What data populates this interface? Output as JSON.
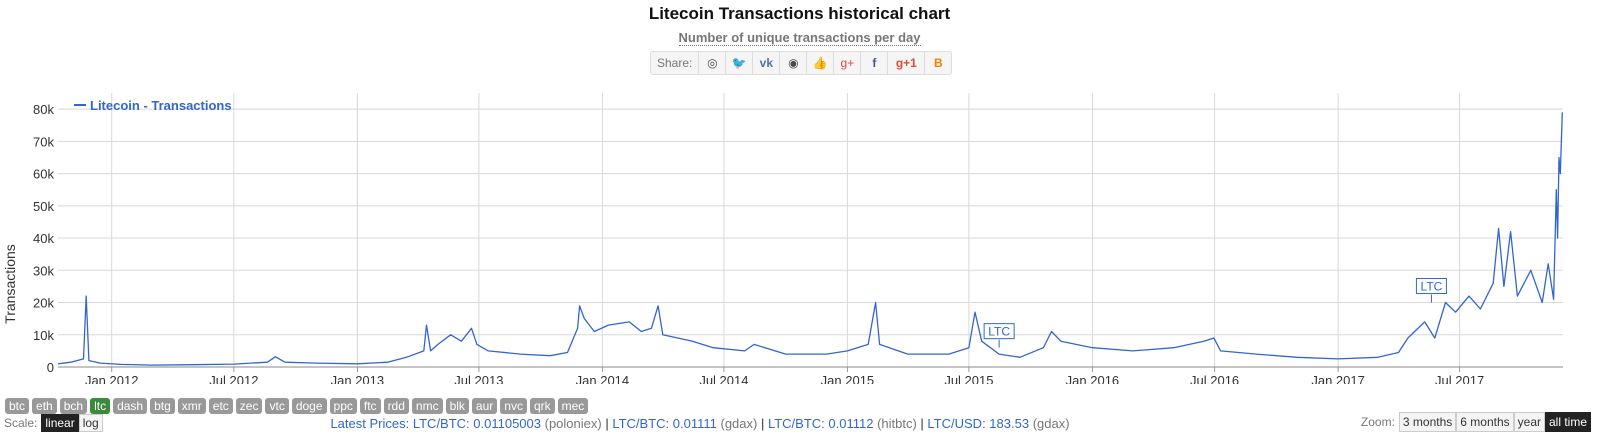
{
  "title": "Litecoin Transactions historical chart",
  "subtitle": "Number of unique transactions per day",
  "share": {
    "label": "Share:",
    "buttons": [
      {
        "icon": "reddit-icon",
        "glyph": "◎"
      },
      {
        "icon": "twitter-icon",
        "glyph": "🐦"
      },
      {
        "icon": "vk-icon",
        "glyph": "vk"
      },
      {
        "icon": "weibo-icon",
        "glyph": "◉"
      },
      {
        "icon": "like-icon",
        "glyph": "👍"
      },
      {
        "icon": "google-plus-icon",
        "glyph": "g+"
      },
      {
        "icon": "facebook-icon",
        "glyph": "f"
      },
      {
        "icon": "google-plus-one-icon",
        "glyph": "g+1"
      },
      {
        "icon": "blogger-icon",
        "glyph": "B"
      }
    ]
  },
  "chart_data": {
    "type": "line",
    "title": "Litecoin Transactions historical chart",
    "subtitle": "Number of unique transactions per day",
    "ylabel": "Transactions",
    "xlabel": "",
    "ylim": [
      0,
      85000
    ],
    "xlim": [
      "2011-10-13",
      "2017-12-02"
    ],
    "grid": true,
    "legend_placement": "top-left",
    "y_ticks": [
      0,
      10000,
      20000,
      30000,
      40000,
      50000,
      60000,
      70000,
      80000
    ],
    "y_tick_labels": [
      "0",
      "10k",
      "20k",
      "30k",
      "40k",
      "50k",
      "60k",
      "70k",
      "80k"
    ],
    "x_ticks": [
      "2012-01-01",
      "2012-07-01",
      "2013-01-01",
      "2013-07-01",
      "2014-01-01",
      "2014-07-01",
      "2015-01-01",
      "2015-07-01",
      "2016-01-01",
      "2016-07-01",
      "2017-01-01",
      "2017-07-01"
    ],
    "x_tick_labels": [
      "Jan 2012",
      "Jul 2012",
      "Jan 2013",
      "Jul 2013",
      "Jan 2014",
      "Jul 2014",
      "Jan 2015",
      "Jul 2015",
      "Jan 2016",
      "Jul 2016",
      "Jan 2017",
      "Jul 2017"
    ],
    "series": [
      {
        "name": "Litecoin - Transactions",
        "color": "#3366cc",
        "points": [
          [
            "2011-10-13",
            1000
          ],
          [
            "2011-11-01",
            1500
          ],
          [
            "2011-11-20",
            2500
          ],
          [
            "2011-11-24",
            22000
          ],
          [
            "2011-11-28",
            2000
          ],
          [
            "2011-12-15",
            1200
          ],
          [
            "2012-01-15",
            800
          ],
          [
            "2012-03-01",
            600
          ],
          [
            "2012-05-01",
            700
          ],
          [
            "2012-07-01",
            900
          ],
          [
            "2012-08-20",
            1500
          ],
          [
            "2012-09-01",
            3200
          ],
          [
            "2012-09-15",
            1500
          ],
          [
            "2012-11-01",
            1200
          ],
          [
            "2013-01-01",
            1000
          ],
          [
            "2013-02-15",
            1500
          ],
          [
            "2013-03-15",
            3000
          ],
          [
            "2013-04-10",
            5000
          ],
          [
            "2013-04-14",
            13000
          ],
          [
            "2013-04-20",
            5000
          ],
          [
            "2013-05-01",
            7000
          ],
          [
            "2013-05-20",
            10000
          ],
          [
            "2013-06-05",
            8000
          ],
          [
            "2013-06-20",
            12000
          ],
          [
            "2013-06-28",
            7000
          ],
          [
            "2013-07-15",
            5000
          ],
          [
            "2013-09-01",
            4000
          ],
          [
            "2013-10-15",
            3500
          ],
          [
            "2013-11-10",
            4500
          ],
          [
            "2013-11-25",
            12000
          ],
          [
            "2013-11-28",
            19000
          ],
          [
            "2013-12-05",
            15000
          ],
          [
            "2013-12-20",
            11000
          ],
          [
            "2014-01-10",
            13000
          ],
          [
            "2014-02-10",
            14000
          ],
          [
            "2014-02-28",
            11000
          ],
          [
            "2014-03-15",
            12000
          ],
          [
            "2014-03-25",
            19000
          ],
          [
            "2014-04-01",
            10000
          ],
          [
            "2014-05-15",
            8000
          ],
          [
            "2014-06-15",
            6000
          ],
          [
            "2014-08-01",
            5000
          ],
          [
            "2014-08-15",
            7000
          ],
          [
            "2014-10-01",
            4000
          ],
          [
            "2014-12-01",
            4000
          ],
          [
            "2015-01-01",
            5000
          ],
          [
            "2015-02-01",
            7000
          ],
          [
            "2015-02-12",
            20000
          ],
          [
            "2015-02-18",
            7000
          ],
          [
            "2015-04-01",
            4000
          ],
          [
            "2015-06-01",
            4000
          ],
          [
            "2015-07-01",
            6000
          ],
          [
            "2015-07-10",
            17000
          ],
          [
            "2015-07-20",
            8000
          ],
          [
            "2015-08-15",
            4000
          ],
          [
            "2015-09-15",
            3000
          ],
          [
            "2015-10-20",
            6000
          ],
          [
            "2015-11-01",
            11000
          ],
          [
            "2015-11-15",
            8000
          ],
          [
            "2016-01-01",
            6000
          ],
          [
            "2016-03-01",
            5000
          ],
          [
            "2016-05-01",
            6000
          ],
          [
            "2016-06-15",
            8000
          ],
          [
            "2016-06-30",
            9000
          ],
          [
            "2016-07-10",
            5000
          ],
          [
            "2016-09-01",
            4000
          ],
          [
            "2016-11-01",
            3000
          ],
          [
            "2017-01-01",
            2500
          ],
          [
            "2017-03-01",
            3000
          ],
          [
            "2017-04-01",
            4500
          ],
          [
            "2017-04-15",
            9000
          ],
          [
            "2017-05-10",
            14000
          ],
          [
            "2017-05-25",
            9000
          ],
          [
            "2017-06-10",
            20000
          ],
          [
            "2017-06-25",
            17000
          ],
          [
            "2017-07-15",
            22000
          ],
          [
            "2017-08-01",
            18000
          ],
          [
            "2017-08-20",
            26000
          ],
          [
            "2017-08-28",
            43000
          ],
          [
            "2017-09-05",
            25000
          ],
          [
            "2017-09-15",
            42000
          ],
          [
            "2017-09-25",
            22000
          ],
          [
            "2017-10-15",
            30000
          ],
          [
            "2017-11-01",
            20000
          ],
          [
            "2017-11-10",
            32000
          ],
          [
            "2017-11-18",
            21000
          ],
          [
            "2017-11-22",
            55000
          ],
          [
            "2017-11-24",
            40000
          ],
          [
            "2017-11-26",
            65000
          ],
          [
            "2017-11-28",
            60000
          ],
          [
            "2017-12-01",
            79000
          ]
        ]
      }
    ],
    "annotations": [
      {
        "label": "LTC",
        "x": "2015-08-15",
        "y": 6000
      },
      {
        "label": "LTC",
        "x": "2017-05-20",
        "y": 20000
      }
    ]
  },
  "coins": [
    "btc",
    "eth",
    "bch",
    "ltc",
    "dash",
    "btg",
    "xmr",
    "etc",
    "zec",
    "vtc",
    "doge",
    "ppc",
    "ftc",
    "rdd",
    "nmc",
    "blk",
    "aur",
    "nvc",
    "qrk",
    "mec"
  ],
  "active_coin": "ltc",
  "scale": {
    "label": "Scale:",
    "options": [
      "linear",
      "log"
    ],
    "active": "linear"
  },
  "prices": {
    "label": "Latest Prices:",
    "items": [
      {
        "pair": "LTC/BTC: 0.01105003",
        "source": "(poloniex)"
      },
      {
        "pair": "LTC/BTC: 0.01111",
        "source": "(gdax)"
      },
      {
        "pair": "LTC/BTC: 0.01112",
        "source": "(hitbtc)"
      },
      {
        "pair": "LTC/USD: 183.53",
        "source": "(gdax)"
      }
    ]
  },
  "zoom": {
    "label": "Zoom:",
    "options": [
      "3 months",
      "6 months",
      "year",
      "all time"
    ],
    "active": "all time"
  }
}
